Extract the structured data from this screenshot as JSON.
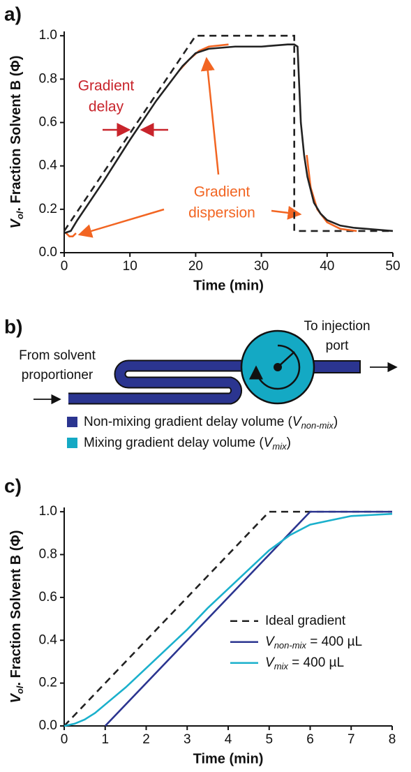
{
  "chart_data": [
    {
      "type": "line",
      "label": "a)",
      "xlabel": "Time (min)",
      "ylabel": "Vol. Fraction Solvent B (Φ)",
      "xlim": [
        0,
        50
      ],
      "ylim": [
        0,
        1.02
      ],
      "xticks": [
        0,
        10,
        20,
        30,
        40,
        50
      ],
      "yticks": [
        {
          "value": 0,
          "label": "0.0"
        },
        0.2,
        0.4,
        0.6,
        0.8,
        {
          "value": 1,
          "label": "1.0"
        }
      ],
      "annotations": [
        {
          "lines": [
            "Gradient",
            "delay"
          ]
        },
        {
          "lines": [
            "Gradient",
            "dispersion"
          ]
        }
      ],
      "series": [
        {
          "color": "#222222",
          "dash": true,
          "x": [
            0,
            20,
            35,
            35,
            50
          ],
          "values": [
            0.1,
            1.0,
            1.0,
            0.1,
            0.1
          ]
        },
        {
          "color": "#f26522",
          "x": [
            0.3,
            0.8,
            1.3,
            1.8
          ],
          "values": [
            0.09,
            0.075,
            0.075,
            0.09
          ]
        },
        {
          "color": "#f26522",
          "x": [
            17.5,
            19,
            20.5,
            22,
            25
          ],
          "values": [
            0.84,
            0.89,
            0.93,
            0.95,
            0.96
          ]
        },
        {
          "color": "#f26522",
          "x": [
            36.9,
            37.5,
            38.5,
            40,
            42,
            44.5
          ],
          "values": [
            0.45,
            0.3,
            0.2,
            0.14,
            0.11,
            0.1
          ]
        },
        {
          "color": "#222222",
          "x": [
            0,
            1,
            2,
            6,
            10,
            14,
            18,
            20,
            22,
            26,
            30,
            34,
            35,
            35.5,
            36,
            36.5,
            37,
            38,
            39,
            40,
            42,
            44,
            46,
            50
          ],
          "values": [
            0.09,
            0.1,
            0.15,
            0.33,
            0.52,
            0.7,
            0.86,
            0.92,
            0.94,
            0.95,
            0.95,
            0.96,
            0.96,
            0.95,
            0.6,
            0.45,
            0.35,
            0.23,
            0.18,
            0.15,
            0.125,
            0.115,
            0.11,
            0.1
          ]
        }
      ]
    },
    {
      "type": "line",
      "label": "c)",
      "xlabel": "Time (min)",
      "ylabel": "Vol. Fraction Solvent B (Φ)",
      "xlim": [
        0,
        8
      ],
      "ylim": [
        0,
        1.02
      ],
      "xticks": [
        0,
        1,
        2,
        3,
        4,
        5,
        6,
        7,
        8
      ],
      "yticks": [
        {
          "value": 0,
          "label": "0.0"
        },
        0.2,
        0.4,
        0.6,
        0.8,
        {
          "value": 1,
          "label": "1.0"
        }
      ],
      "legend": "right",
      "series": [
        {
          "name": "Ideal gradient",
          "color": "#222222",
          "dash": true,
          "x": [
            0,
            5,
            8
          ],
          "values": [
            0,
            1,
            1
          ]
        },
        {
          "name": "Vnon-mix = 400 µL",
          "color": "#2b3590",
          "x": [
            1,
            6,
            8
          ],
          "values": [
            0,
            1,
            1
          ]
        },
        {
          "name": "Vmix = 400 µL",
          "color": "#1ab0cc",
          "x": [
            0,
            0.25,
            0.5,
            0.75,
            1,
            1.5,
            2,
            2.5,
            3,
            3.5,
            4,
            4.5,
            5,
            5.5,
            6,
            6.5,
            7,
            7.5,
            8
          ],
          "values": [
            0,
            0.01,
            0.03,
            0.06,
            0.1,
            0.18,
            0.27,
            0.36,
            0.45,
            0.55,
            0.64,
            0.73,
            0.82,
            0.89,
            0.94,
            0.96,
            0.98,
            0.985,
            0.99
          ]
        }
      ]
    }
  ],
  "diagram": {
    "label": "b)",
    "inlet": [
      "From solvent",
      "proportioner"
    ],
    "outlet": [
      "To injection",
      "port"
    ],
    "legend": [
      {
        "label": "Non-mixing gradient delay volume (Vnon-mix)",
        "color": "#2b3590"
      },
      {
        "label": "Mixing gradient delay volume (Vmix)",
        "color": "#14a9c4"
      }
    ]
  }
}
